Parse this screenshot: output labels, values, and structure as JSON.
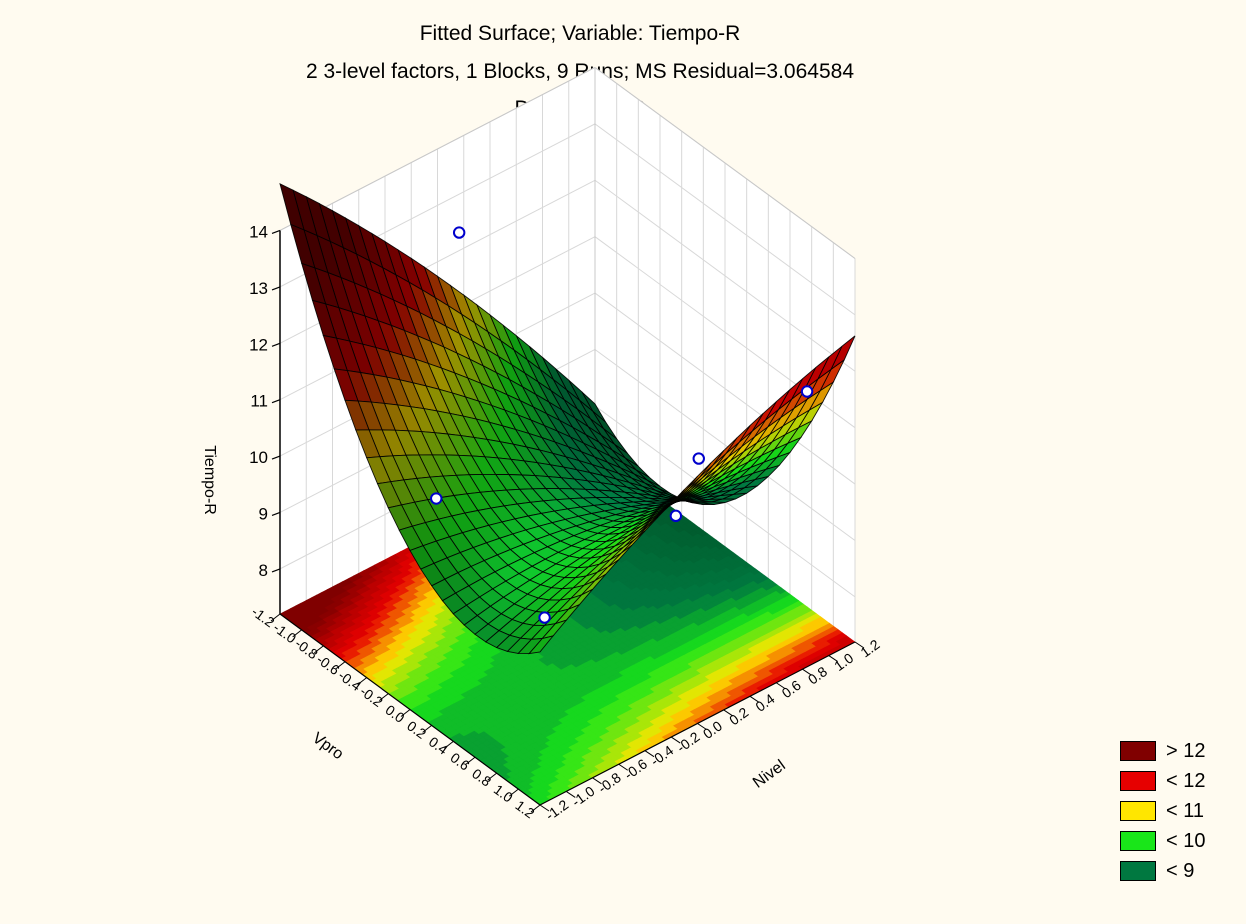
{
  "chart_data": {
    "type": "surface3d",
    "title": "Fitted Surface; Variable: Tiempo-R",
    "subtitle": "2 3-level factors, 1 Blocks, 9 Runs; MS Residual=3.064584",
    "subtitle2": "DV: Tiempo-R",
    "x_axis": {
      "label": "Vpro",
      "range": [
        -1.2,
        1.2
      ],
      "ticks": [
        "-1.2",
        "-1.0",
        "-0.8",
        "-0.6",
        "-0.4",
        "-0.2",
        "0.0",
        "0.2",
        "0.4",
        "0.6",
        "0.8",
        "1.0",
        "1.2"
      ]
    },
    "y_axis": {
      "label": "Nivel",
      "range": [
        -1.2,
        1.2
      ],
      "ticks": [
        "-1.2",
        "-1.0",
        "-0.8",
        "-0.6",
        "-0.4",
        "-0.2",
        "0.0",
        "0.2",
        "0.4",
        "0.6",
        "0.8",
        "1.0",
        "1.2"
      ]
    },
    "z_axis": {
      "label": "Tiempo-R",
      "range": [
        7.2,
        14
      ],
      "ticks": [
        "8",
        "9",
        "10",
        "11",
        "12",
        "13",
        "14"
      ]
    },
    "surface_grid_extent": [
      -1.2,
      1.2
    ],
    "observed_points": [
      {
        "x": -1,
        "y": -1,
        "z": 10.0
      },
      {
        "x": -1,
        "y": 0,
        "z": 10.6
      },
      {
        "x": -1,
        "y": 1,
        "z": 11.6
      },
      {
        "x": 0,
        "y": -1,
        "z": 10.7
      },
      {
        "x": 0,
        "y": 0,
        "z": 7.8
      },
      {
        "x": 0,
        "y": 1,
        "z": 9.0
      },
      {
        "x": 1,
        "y": -1,
        "z": 12.4
      },
      {
        "x": 1,
        "y": 0,
        "z": 12.8
      },
      {
        "x": 1,
        "y": 1,
        "z": 7.4
      }
    ],
    "legend": [
      {
        "label": "> 12",
        "color": "#800000"
      },
      {
        "label": "< 12",
        "color": "#e60000"
      },
      {
        "label": "< 11",
        "color": "#ffe600"
      },
      {
        "label": "< 10",
        "color": "#19e619"
      },
      {
        "label": "< 9",
        "color": "#007840"
      }
    ],
    "grid": true
  }
}
